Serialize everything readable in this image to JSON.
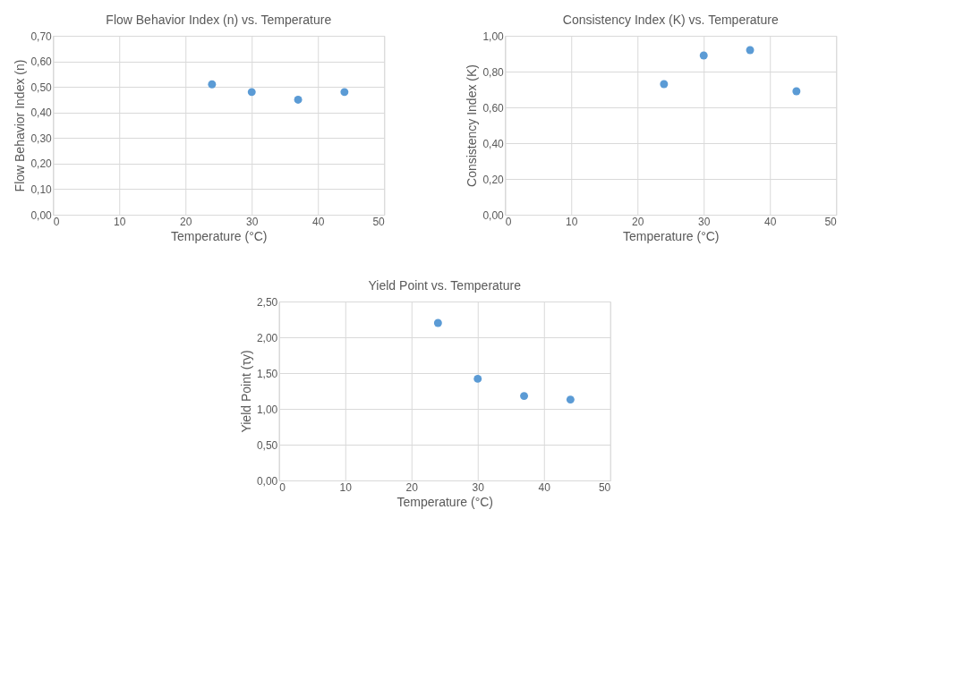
{
  "chart_data": [
    {
      "type": "scatter",
      "title": "Flow Behavior Index (n) vs. Temperature",
      "xlabel": "Temperature (°C)",
      "ylabel": "Flow Behavior Index (n)",
      "x": [
        24,
        30,
        37,
        44
      ],
      "series": [
        {
          "color": "#5b9bd5",
          "values": [
            0.51,
            0.48,
            0.45,
            0.48
          ]
        }
      ],
      "xlim": [
        0,
        50
      ],
      "xticks": [
        0,
        10,
        20,
        30,
        40,
        50
      ],
      "ylim": [
        0,
        0.7
      ],
      "yticks": [
        {
          "value": 0,
          "label": "0,00"
        },
        {
          "value": 0.1,
          "label": "0,10"
        },
        {
          "value": 0.2,
          "label": "0,20"
        },
        {
          "value": 0.3,
          "label": "0,30"
        },
        {
          "value": 0.4,
          "label": "0,40"
        },
        {
          "value": 0.5,
          "label": "0,50"
        },
        {
          "value": 0.6,
          "label": "0,60"
        },
        {
          "value": 0.7,
          "label": "0,70"
        }
      ],
      "grid": true,
      "marker": "circle"
    },
    {
      "type": "scatter",
      "title": "Consistency Index (K) vs. Temperature",
      "xlabel": "Temperature (°C)",
      "ylabel": "Consistency Index (K)",
      "x": [
        24,
        30,
        37,
        44
      ],
      "series": [
        {
          "color": "#5b9bd5",
          "values": [
            0.73,
            0.89,
            0.92,
            0.69
          ]
        }
      ],
      "xlim": [
        0,
        50
      ],
      "xticks": [
        0,
        10,
        20,
        30,
        40,
        50
      ],
      "ylim": [
        0,
        1
      ],
      "yticks": [
        {
          "value": 0,
          "label": "0,00"
        },
        {
          "value": 0.2,
          "label": "0,20"
        },
        {
          "value": 0.4,
          "label": "0,40"
        },
        {
          "value": 0.6,
          "label": "0,60"
        },
        {
          "value": 0.8,
          "label": "0,80"
        },
        {
          "value": 1,
          "label": "1,00"
        }
      ],
      "grid": true,
      "marker": "circle"
    },
    {
      "type": "scatter",
      "title": "Yield Point vs. Temperature",
      "xlabel": "Temperature (°C)",
      "ylabel": "Yield Point (τy)",
      "x": [
        24,
        30,
        37,
        44
      ],
      "series": [
        {
          "color": "#5b9bd5",
          "values": [
            2.2,
            1.42,
            1.18,
            1.13
          ]
        }
      ],
      "xlim": [
        0,
        50
      ],
      "xticks": [
        0,
        10,
        20,
        30,
        40,
        50
      ],
      "ylim": [
        0,
        2.5
      ],
      "yticks": [
        {
          "value": 0,
          "label": "0,00"
        },
        {
          "value": 0.5,
          "label": "0,50"
        },
        {
          "value": 1,
          "label": "1,00"
        },
        {
          "value": 1.5,
          "label": "1,50"
        },
        {
          "value": 2,
          "label": "2,00"
        },
        {
          "value": 2.5,
          "label": "2,50"
        }
      ],
      "grid": true,
      "marker": "circle"
    }
  ]
}
